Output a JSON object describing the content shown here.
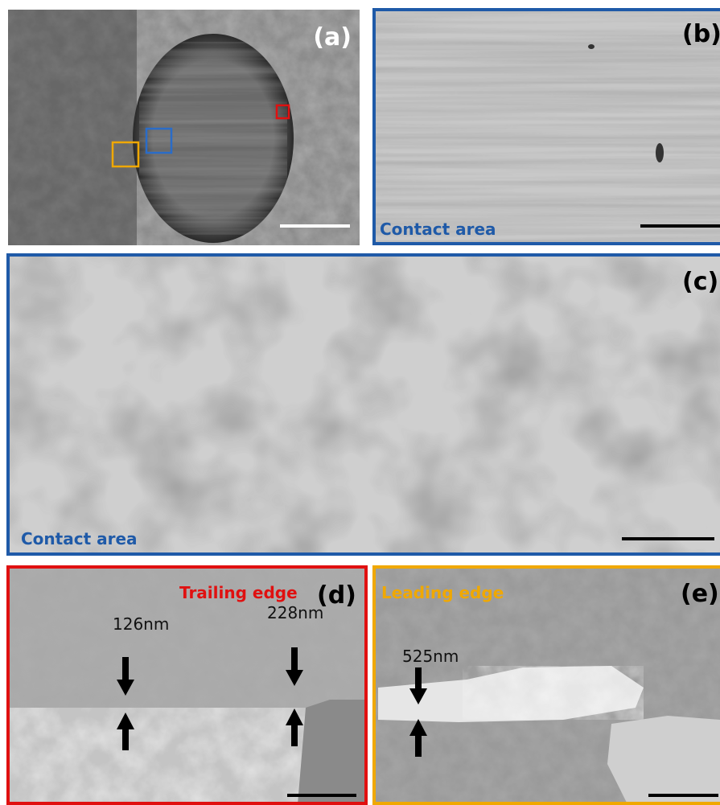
{
  "panels": [
    {
      "label": "(a)"
    },
    {
      "label": "(b)",
      "caption": "Contact area"
    },
    {
      "label": "(c)",
      "caption": "Contact area"
    },
    {
      "label": "(d)",
      "caption": "Trailing edge",
      "measurements": [
        "126nm",
        "228nm"
      ]
    },
    {
      "label": "(e)",
      "caption": "Leading edge",
      "measurements": [
        "525nm"
      ]
    }
  ]
}
